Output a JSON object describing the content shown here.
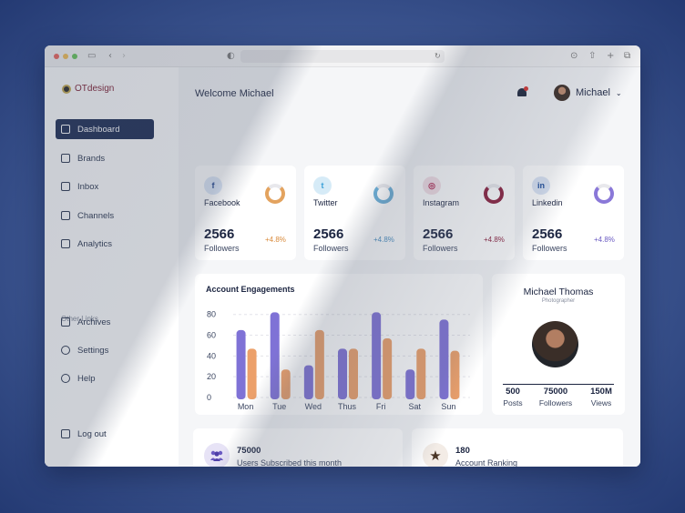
{
  "app": {
    "brand": "OTdesign"
  },
  "sidebar": {
    "items": [
      {
        "label": "Dashboard",
        "icon": "briefcase-icon",
        "active": true
      },
      {
        "label": "Brands",
        "icon": "tag-icon"
      },
      {
        "label": "Inbox",
        "icon": "inbox-icon"
      },
      {
        "label": "Channels",
        "icon": "chat-icon"
      },
      {
        "label": "Analytics",
        "icon": "bar-chart-icon"
      }
    ],
    "other_links_label": "Other Links",
    "other_links": [
      {
        "label": "Archives",
        "icon": "archive-icon"
      },
      {
        "label": "Settings",
        "icon": "gear-icon"
      },
      {
        "label": "Help",
        "icon": "help-icon"
      }
    ],
    "logout_label": "Log out"
  },
  "header": {
    "welcome": "Welcome Michael",
    "user_name": "Michael"
  },
  "social": [
    {
      "name": "Facebook",
      "count": "2566",
      "label": "Followers",
      "delta": "+4.8%",
      "icon_text": "f",
      "icon_bg": "#dbe6f7",
      "icon_color": "#1a3f8a",
      "donut_color": "#e3a35f",
      "delta_color": "#d98a3a"
    },
    {
      "name": "Twitter",
      "count": "2566",
      "label": "Followers",
      "delta": "+4.8%",
      "icon_text": "t",
      "icon_bg": "#d6ebf7",
      "icon_color": "#3aa0d8",
      "donut_color": "#6aaed6",
      "delta_color": "#4a8fc2"
    },
    {
      "name": "Instagram",
      "count": "2566",
      "label": "Followers",
      "delta": "+4.8%",
      "icon_text": "◎",
      "icon_bg": "#f4dfe6",
      "icon_color": "#b0234e",
      "donut_color": "#8a1f3d",
      "delta_color": "#8a1f3d"
    },
    {
      "name": "Linkedin",
      "count": "2566",
      "label": "Followers",
      "delta": "+4.8%",
      "icon_text": "in",
      "icon_bg": "#d9e3f4",
      "icon_color": "#1a4a9a",
      "donut_color": "#8a78d8",
      "delta_color": "#6a5ac2"
    }
  ],
  "chart_data": {
    "type": "bar",
    "title": "Account Engagements",
    "categories": [
      "Mon",
      "Tue",
      "Wed",
      "Thus",
      "Fri",
      "Sat",
      "Sun"
    ],
    "series": [
      {
        "values": [
          65,
          82,
          31,
          47,
          82,
          27,
          75
        ],
        "color": "#7f72d6"
      },
      {
        "values": [
          47,
          27,
          65,
          47,
          57,
          47,
          45
        ],
        "color": "#eca06a"
      }
    ],
    "yticks": [
      0,
      20,
      40,
      60,
      80
    ],
    "ylim": [
      0,
      85
    ],
    "grid": true
  },
  "profile": {
    "name": "Michael Thomas",
    "role": "Photographer",
    "stats": [
      {
        "value": "500",
        "label": "Posts"
      },
      {
        "value": "75000",
        "label": "Followers"
      },
      {
        "value": "150M",
        "label": "Views"
      }
    ]
  },
  "bottom": [
    {
      "value": "75000",
      "label": "Users Subscribed this month",
      "icon": "users-icon"
    },
    {
      "value": "180",
      "label": "Account Ranking",
      "icon": "star-icon"
    }
  ]
}
